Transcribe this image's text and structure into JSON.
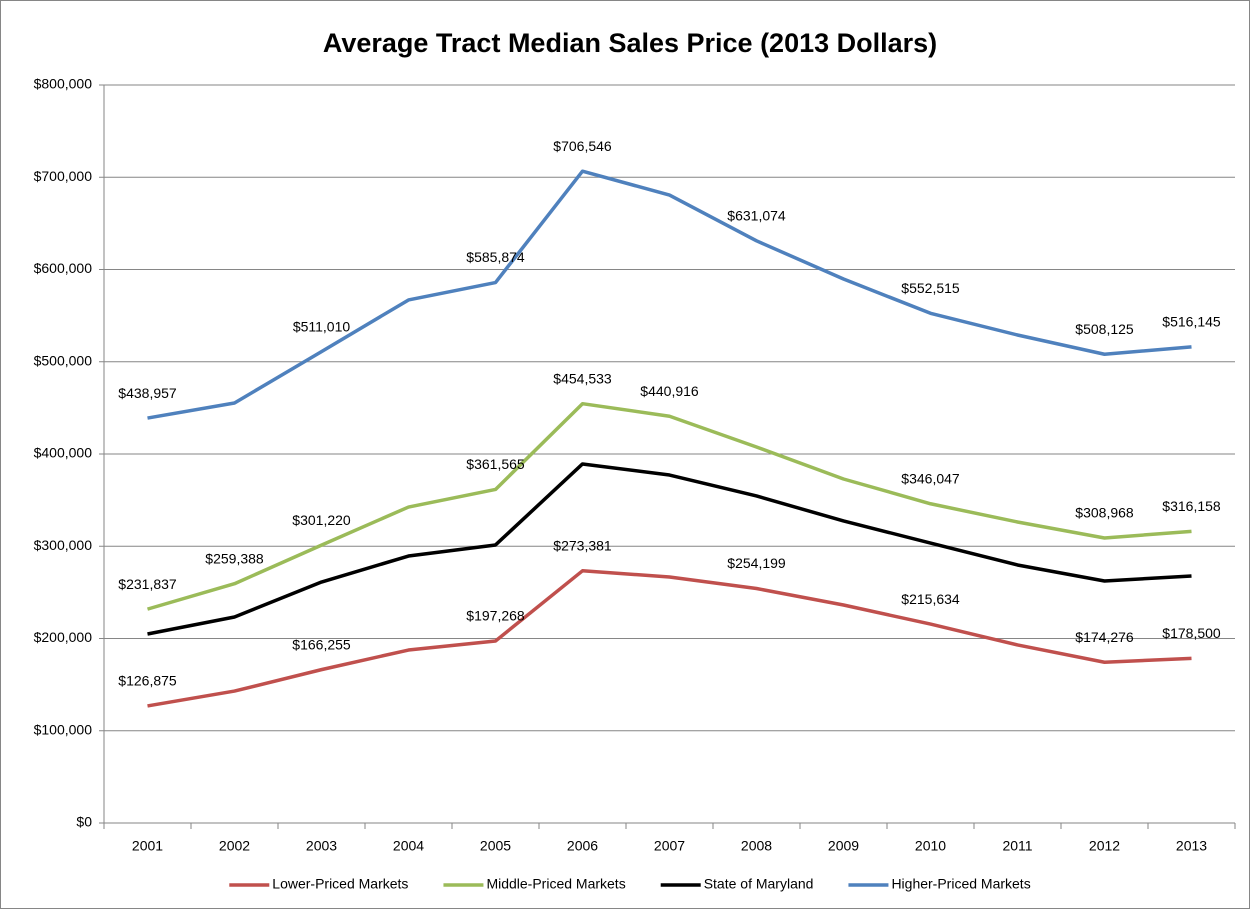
{
  "chart_data": {
    "type": "line",
    "title": "Average Tract Median Sales Price (2013 Dollars)",
    "categories": [
      "2001",
      "2002",
      "2003",
      "2004",
      "2005",
      "2006",
      "2007",
      "2008",
      "2009",
      "2010",
      "2011",
      "2012",
      "2013"
    ],
    "series": [
      {
        "name": "Lower-Priced Markets",
        "color": "#c0504d",
        "values": [
          126875,
          143000,
          166255,
          187500,
          197268,
          273381,
          266700,
          254199,
          236300,
          215634,
          193000,
          174276,
          178500
        ],
        "value_labels": [
          "$126,875",
          null,
          "$166,255",
          null,
          "$197,268",
          "$273,381",
          null,
          "$254,199",
          null,
          "$215,634",
          null,
          "$174,276",
          "$178,500"
        ]
      },
      {
        "name": "Middle-Priced Markets",
        "color": "#9bbb59",
        "values": [
          231837,
          259388,
          301220,
          342500,
          361565,
          454533,
          440916,
          407600,
          372900,
          346047,
          326300,
          308968,
          316158
        ],
        "value_labels": [
          "$231,837",
          "$259,388",
          "$301,220",
          null,
          "$361,565",
          "$454,533",
          "$440,916",
          null,
          null,
          "$346,047",
          null,
          "$308,968",
          "$316,158"
        ]
      },
      {
        "name": "State of Maryland",
        "color": "#000000",
        "values": [
          204900,
          223300,
          261200,
          289400,
          301400,
          389200,
          377200,
          354500,
          327400,
          303500,
          279700,
          262300,
          267800
        ]
      },
      {
        "name": "Higher-Priced Markets",
        "color": "#4f81bd",
        "values": [
          438957,
          455300,
          511010,
          567000,
          585874,
          706546,
          680700,
          631074,
          589700,
          552515,
          529000,
          508125,
          516145
        ],
        "value_labels": [
          "$438,957",
          null,
          "$511,010",
          null,
          "$585,874",
          "$706,546",
          null,
          "$631,074",
          null,
          "$552,515",
          null,
          "$508,125",
          "$516,145"
        ]
      }
    ],
    "ylim": [
      0,
      800000
    ],
    "yticks": [
      {
        "value": 0,
        "label": "$0"
      },
      {
        "value": 100000,
        "label": "$100,000"
      },
      {
        "value": 200000,
        "label": "$200,000"
      },
      {
        "value": 300000,
        "label": "$300,000"
      },
      {
        "value": 400000,
        "label": "$400,000"
      },
      {
        "value": 500000,
        "label": "$500,000"
      },
      {
        "value": 600000,
        "label": "$600,000"
      },
      {
        "value": 700000,
        "label": "$700,000"
      },
      {
        "value": 800000,
        "label": "$800,000"
      }
    ],
    "grid": true,
    "legend": "bottom"
  }
}
